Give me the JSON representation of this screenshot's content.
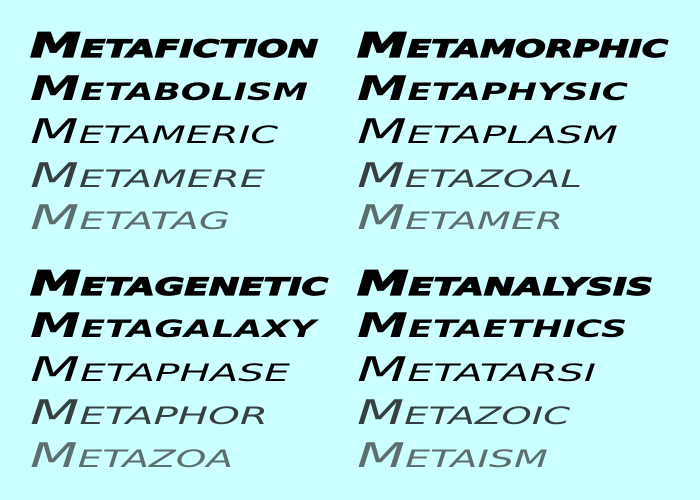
{
  "blocks": [
    {
      "left": [
        "Metafiction",
        "Metabolism",
        "Metameric",
        "Metamere",
        "Metatag"
      ],
      "right": [
        "Metamorphic",
        "Metaphysic",
        "Metaplasm",
        "Metazoal",
        "Metamer"
      ]
    },
    {
      "left": [
        "Metagenetic",
        "Metagalaxy",
        "Metaphase",
        "Metaphor",
        "Metazoa"
      ],
      "right": [
        "Metanalysis",
        "Metaethics",
        "Metatarsi",
        "Metazoic",
        "Metaism"
      ]
    }
  ]
}
